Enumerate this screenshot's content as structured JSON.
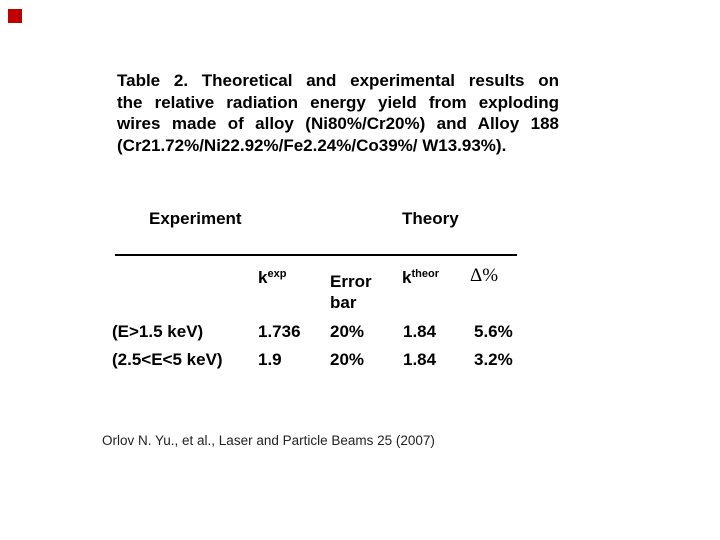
{
  "marker": {
    "color": "#c00000"
  },
  "title": {
    "lines": [
      "Table 2. Theoretical and experimental results on",
      "the relative radiation energy yield from exploding",
      "wires made of alloy (Ni80%/Cr20%) and Alloy 188",
      "(Cr21.72%/Ni22.92%/Fe2.24%/Co39%/ W13.93%)."
    ]
  },
  "table": {
    "group_headers": [
      {
        "label": "Experiment"
      },
      {
        "label": "Theory"
      }
    ],
    "columns": [
      {
        "base": "k",
        "sup": "exp"
      },
      {
        "label": "Error\nbar"
      },
      {
        "base": "k",
        "sup": "theor"
      },
      {
        "label": "Δ%"
      }
    ],
    "rows": [
      {
        "label": "(E>1.5 keV)",
        "values": [
          "1.736",
          "20%",
          "1.84",
          "5.6%"
        ]
      },
      {
        "label": "(2.5<E<5 keV)",
        "values": [
          "1.9",
          "20%",
          "1.84",
          "3.2%"
        ]
      }
    ]
  },
  "citation": {
    "text": "Orlov N. Yu., et al., Laser and Particle Beams 25 (2007)"
  }
}
